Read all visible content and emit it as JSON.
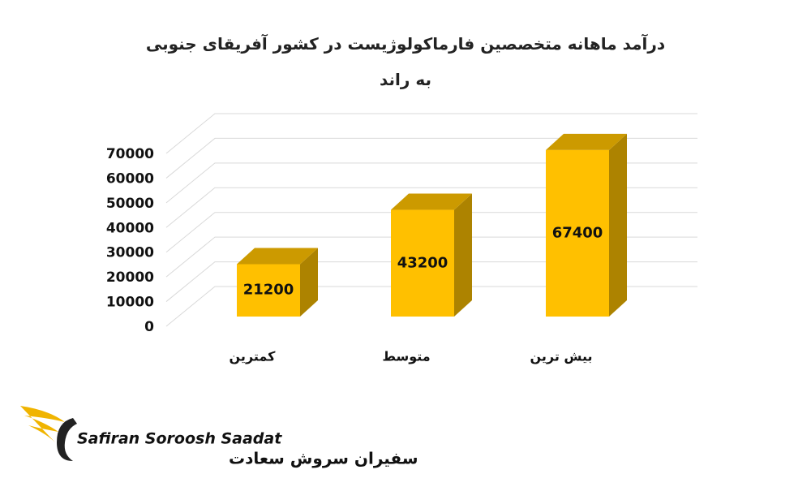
{
  "chart_data": {
    "type": "bar3d",
    "title": "درآمد ماهانه متخصصین فارماکولوژیست در کشور آفریقای جنوبی به راند",
    "categories": [
      "کمترین",
      "متوسط",
      "بیش ترین"
    ],
    "values": [
      21200,
      43200,
      67400
    ],
    "color": "#ffc000",
    "ylim": [
      0,
      70000
    ],
    "yticks": [
      0,
      10000,
      20000,
      30000,
      40000,
      50000,
      60000,
      70000
    ],
    "grid": true
  },
  "logo": {
    "name_en": "Safiran Soroosh Saadat",
    "name_fa": "سفیران سروش سعادت"
  }
}
